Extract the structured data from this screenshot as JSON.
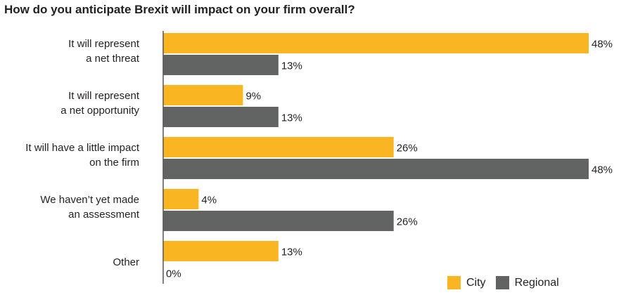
{
  "title": "How do you anticipate Brexit will impact on your firm overall?",
  "colors": {
    "city": "#f9b522",
    "regional": "#626363",
    "axis": "#555555",
    "text": "#231f20"
  },
  "chart_data": {
    "type": "bar",
    "orientation": "horizontal",
    "title": "How do you anticipate Brexit will impact on your firm overall?",
    "categories": [
      [
        "It will represent",
        "a net threat"
      ],
      [
        "It will represent",
        "a net opportunity"
      ],
      [
        "It will have a little impact",
        "on the firm"
      ],
      [
        "We haven’t yet made",
        "an assessment"
      ],
      [
        "Other"
      ]
    ],
    "series": [
      {
        "name": "City",
        "color": "#f9b522",
        "values": [
          48,
          9,
          26,
          4,
          13
        ],
        "labels": [
          "48%",
          "9%",
          "26%",
          "4%",
          "13%"
        ]
      },
      {
        "name": "Regional",
        "color": "#626363",
        "values": [
          13,
          13,
          48,
          26,
          0
        ],
        "labels": [
          "13%",
          "13%",
          "48%",
          "26%",
          "0%"
        ]
      }
    ],
    "xlim": [
      0,
      48
    ],
    "grid": false,
    "legend_position": "bottom-right"
  },
  "legend": {
    "city_label": "City",
    "regional_label": "Regional"
  }
}
